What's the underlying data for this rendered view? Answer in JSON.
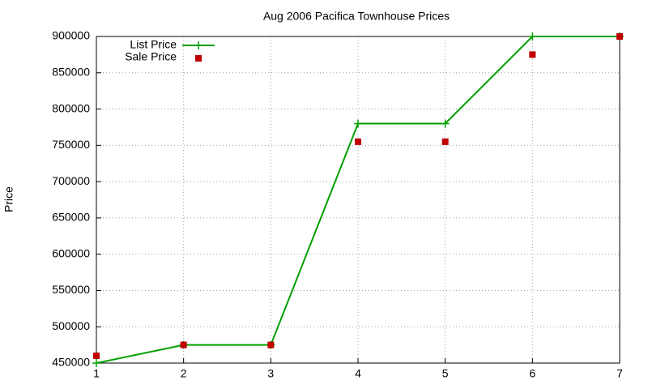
{
  "chart_data": {
    "type": "line",
    "title": "Aug 2006 Pacifica Townhouse Prices",
    "y_label": "Price",
    "x": [
      1,
      2,
      3,
      4,
      5,
      6,
      7
    ],
    "series": [
      {
        "name": "List Price",
        "color": "#00a000",
        "style": "linespoints",
        "values": [
          450000,
          475000,
          475000,
          780000,
          780000,
          900000,
          900000
        ]
      },
      {
        "name": "Sale Price",
        "color": "#c00000",
        "style": "points",
        "values": [
          460000,
          475000,
          475000,
          755000,
          755000,
          875000,
          900000
        ]
      }
    ],
    "xlim": [
      1,
      7
    ],
    "xticks": [
      1,
      2,
      3,
      4,
      5,
      6,
      7
    ],
    "ylim": [
      450000,
      900000
    ],
    "yticks": [
      450000,
      500000,
      550000,
      600000,
      650000,
      700000,
      750000,
      800000,
      850000,
      900000
    ],
    "grid": true,
    "legend": "top-left"
  }
}
